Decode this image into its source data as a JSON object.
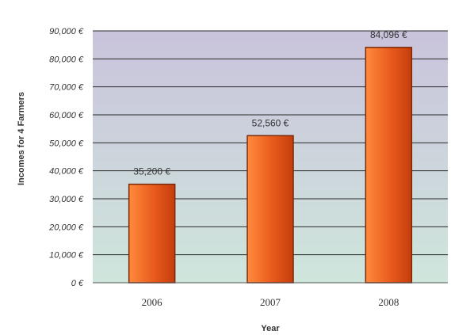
{
  "chart_data": {
    "type": "bar",
    "categories": [
      "2006",
      "2007",
      "2008"
    ],
    "values": [
      35200,
      52560,
      84096
    ],
    "data_labels": [
      "35,200 €",
      "52,560 €",
      "84,096 €"
    ],
    "ylabel": "Incomes for 4 Farmers",
    "xlabel": "Year",
    "ylim": [
      0,
      90000
    ],
    "yticks": [
      0,
      10000,
      20000,
      30000,
      40000,
      50000,
      60000,
      70000,
      80000,
      90000
    ],
    "ytick_labels": [
      "0 €",
      "10,000 €",
      "20,000 €",
      "30,000 €",
      "40,000 €",
      "50,000 €",
      "60,000 €",
      "70,000 €",
      "80,000 €",
      "90,000 €"
    ],
    "grid": true,
    "legend": "none",
    "colors": {
      "bar_light": "#ff8a3c",
      "bar_dark": "#c43d0c",
      "bar_edge": "#7a2a08",
      "plot_top": "#c9c3dc",
      "plot_bottom": "#cfe6dc",
      "grid": "#2a2a2a"
    }
  }
}
